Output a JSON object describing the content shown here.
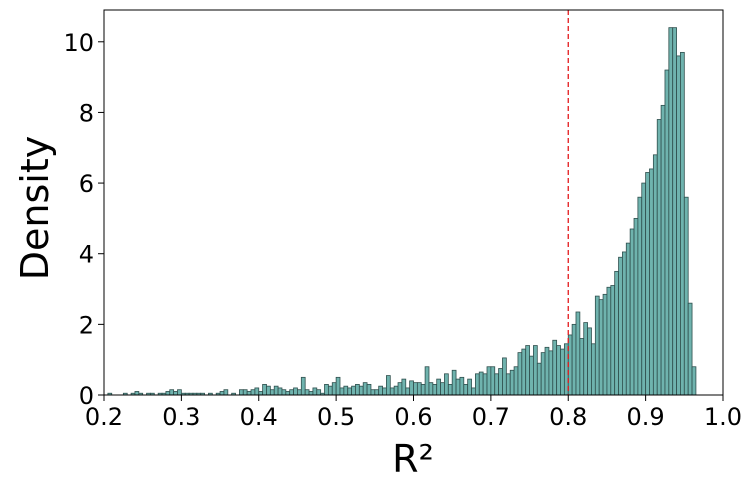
{
  "chart_data": {
    "type": "histogram",
    "xlabel": "R²",
    "ylabel": "Density",
    "bins": [
      0.2,
      0.205,
      0.21,
      0.215,
      0.22,
      0.225,
      0.23,
      0.235,
      0.24,
      0.245,
      0.25,
      0.255,
      0.26,
      0.265,
      0.27,
      0.275,
      0.28,
      0.285,
      0.29,
      0.295,
      0.3,
      0.305,
      0.31,
      0.315,
      0.32,
      0.325,
      0.33,
      0.335,
      0.34,
      0.345,
      0.35,
      0.355,
      0.36,
      0.365,
      0.37,
      0.375,
      0.38,
      0.385,
      0.39,
      0.395,
      0.4,
      0.405,
      0.41,
      0.415,
      0.42,
      0.425,
      0.43,
      0.435,
      0.44,
      0.445,
      0.45,
      0.455,
      0.46,
      0.465,
      0.47,
      0.475,
      0.48,
      0.485,
      0.49,
      0.495,
      0.5,
      0.505,
      0.51,
      0.515,
      0.52,
      0.525,
      0.53,
      0.535,
      0.54,
      0.545,
      0.55,
      0.555,
      0.56,
      0.565,
      0.57,
      0.575,
      0.58,
      0.585,
      0.59,
      0.595,
      0.6,
      0.605,
      0.61,
      0.615,
      0.62,
      0.625,
      0.63,
      0.635,
      0.64,
      0.645,
      0.65,
      0.655,
      0.66,
      0.665,
      0.67,
      0.675,
      0.68,
      0.685,
      0.69,
      0.695,
      0.7,
      0.705,
      0.71,
      0.715,
      0.72,
      0.725,
      0.73,
      0.735,
      0.74,
      0.745,
      0.75,
      0.755,
      0.76,
      0.765,
      0.77,
      0.775,
      0.78,
      0.785,
      0.79,
      0.795,
      0.8,
      0.805,
      0.81,
      0.815,
      0.82,
      0.825,
      0.83,
      0.835,
      0.84,
      0.845,
      0.85,
      0.855,
      0.86,
      0.865,
      0.87,
      0.875,
      0.88,
      0.885,
      0.89,
      0.895,
      0.9,
      0.905,
      0.91,
      0.915,
      0.92,
      0.925,
      0.93,
      0.935,
      0.94,
      0.945,
      0.95,
      0.955,
      0.96,
      0.965,
      0.97
    ],
    "values": [
      0,
      0.05,
      0,
      0,
      0,
      0.05,
      0,
      0.05,
      0.1,
      0.05,
      0,
      0.05,
      0.05,
      0,
      0.05,
      0.05,
      0.1,
      0.15,
      0.1,
      0.15,
      0.05,
      0.05,
      0.05,
      0.05,
      0.05,
      0.05,
      0,
      0.05,
      0,
      0.05,
      0.1,
      0.15,
      0,
      0.05,
      0,
      0.15,
      0.15,
      0.1,
      0.15,
      0.2,
      0.1,
      0.3,
      0.25,
      0.15,
      0.25,
      0.2,
      0.15,
      0.1,
      0.15,
      0.2,
      0.15,
      0.5,
      0.15,
      0.1,
      0.2,
      0.15,
      0.05,
      0.3,
      0.25,
      0.35,
      0.5,
      0.2,
      0.25,
      0.2,
      0.25,
      0.3,
      0.25,
      0.35,
      0.3,
      0.15,
      0.15,
      0.25,
      0.2,
      0.55,
      0.2,
      0.25,
      0.35,
      0.45,
      0.2,
      0.4,
      0.35,
      0.35,
      0.3,
      0.8,
      0.35,
      0.3,
      0.45,
      0.35,
      0.6,
      0.3,
      0.7,
      0.45,
      0.5,
      0.3,
      0.45,
      0.2,
      0.6,
      0.65,
      0.6,
      0.8,
      0.8,
      0.6,
      0.75,
      1.05,
      0.6,
      0.7,
      0.8,
      1.2,
      1.3,
      1.4,
      1.1,
      1.4,
      0.9,
      1.2,
      1.35,
      1.25,
      1.55,
      1.4,
      1.3,
      1.45,
      1.7,
      2.0,
      2.35,
      1.6,
      2.05,
      1.9,
      1.45,
      2.8,
      2.7,
      2.85,
      3.05,
      3.1,
      3.5,
      3.9,
      4.05,
      4.3,
      4.7,
      5.0,
      5.6,
      6.0,
      6.3,
      6.4,
      6.8,
      7.8,
      8.2,
      9.2,
      10.4,
      10.4,
      9.6,
      9.7,
      5.6,
      2.6,
      0.8,
      0
    ],
    "color": "#6fb3ae",
    "edgecolor": "#2f4f4d",
    "vline": 0.8,
    "vline_color": "#e31a1c",
    "xlim": [
      0.2,
      1.0
    ],
    "ylim": [
      0,
      10.9
    ],
    "xticks": [
      0.2,
      0.3,
      0.4,
      0.5,
      0.6,
      0.7,
      0.8,
      0.9,
      {
        "value": 1,
        "label": "1.0"
      }
    ],
    "yticks": [
      0,
      2,
      4,
      6,
      8,
      10
    ]
  }
}
